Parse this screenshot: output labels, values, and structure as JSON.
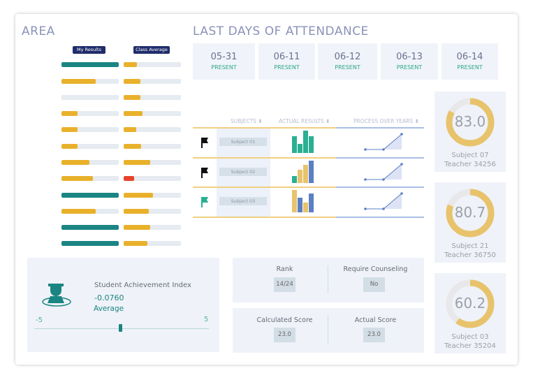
{
  "area": {
    "title": "AREA",
    "my_results_label": "My Results",
    "class_average_label": "Class Average",
    "my_results": [
      1.0,
      0.6,
      0,
      0.28,
      0.28,
      0.28,
      0.49,
      0.55,
      1.0,
      0.6,
      1.0,
      1.0
    ],
    "my_status": [
      "good",
      "mid",
      "mid",
      "mid",
      "mid",
      "mid",
      "mid",
      "mid",
      "good",
      "mid",
      "good",
      "good"
    ],
    "class_average": [
      0.23,
      0.29,
      0.29,
      0.33,
      0.22,
      0.3,
      0.46,
      0.18,
      0.51,
      0.44,
      0.46,
      0.41
    ],
    "class_status": [
      "mid",
      "mid",
      "mid",
      "mid",
      "mid",
      "mid",
      "mid",
      "bad",
      "mid",
      "mid",
      "mid",
      "mid"
    ]
  },
  "colors": {
    "good": "#1a8582",
    "mid": "#e9b12b",
    "bad": "#e8432b",
    "teal": "#2aaf93",
    "yellow": "#e8c36c",
    "blue": "#5b7fc4"
  },
  "attendance": {
    "title": "LAST DAYS OF ATTENDANCE",
    "days": [
      {
        "date": "05-31",
        "status": "PRESENT"
      },
      {
        "date": "06-11",
        "status": "PRESENT"
      },
      {
        "date": "06-12",
        "status": "PRESENT"
      },
      {
        "date": "06-13",
        "status": "PRESENT"
      },
      {
        "date": "06-14",
        "status": "PRESENT"
      }
    ]
  },
  "table": {
    "headers": [
      "SUBJECTS",
      "ACTUAL RESULTS",
      "PROCESS OVER YEARS"
    ],
    "rows": [
      {
        "flag": "black",
        "subject": "Subject 01",
        "bars": [
          [
            0.75,
            "teal"
          ],
          [
            0.42,
            "teal"
          ],
          [
            1,
            "teal"
          ],
          [
            0.75,
            "teal"
          ]
        ],
        "trend": [
          0,
          0,
          1
        ]
      },
      {
        "flag": "black",
        "subject": "Subject 02",
        "bars": [
          [
            0.3,
            "teal"
          ],
          [
            0.6,
            "yellow"
          ],
          [
            0.8,
            "yellow"
          ],
          [
            1,
            "blue"
          ]
        ],
        "trend": [
          0,
          0,
          1
        ]
      },
      {
        "flag": "teal",
        "subject": "Subject 03",
        "bars": [
          [
            1,
            "yellow"
          ],
          [
            0.65,
            "blue"
          ],
          [
            0.45,
            "yellow"
          ],
          [
            0.85,
            "blue"
          ]
        ],
        "trend": [
          0,
          0,
          1
        ]
      }
    ]
  },
  "donuts": [
    {
      "value": "83.0",
      "pct": 83,
      "subject": "Subject 07",
      "teacher": "Teacher 34256"
    },
    {
      "value": "80.7",
      "pct": 80.7,
      "subject": "Subject 21",
      "teacher": "Teacher 36750"
    },
    {
      "value": "60.2",
      "pct": 60.2,
      "subject": "Subject 03",
      "teacher": "Teacher 35204"
    }
  ],
  "achievement": {
    "label": "Student Achievement Index",
    "value": "-0.0760",
    "level": "Average",
    "min": "-5",
    "max": "5",
    "slider_value": -0.076
  },
  "stats": {
    "rank_label": "Rank",
    "rank": "14/24",
    "counsel_label": "Require Counseling",
    "counsel": "No",
    "calc_label": "Calculated Score",
    "calc": "23.0",
    "actual_label": "Actual Score",
    "actual": "23.0"
  }
}
